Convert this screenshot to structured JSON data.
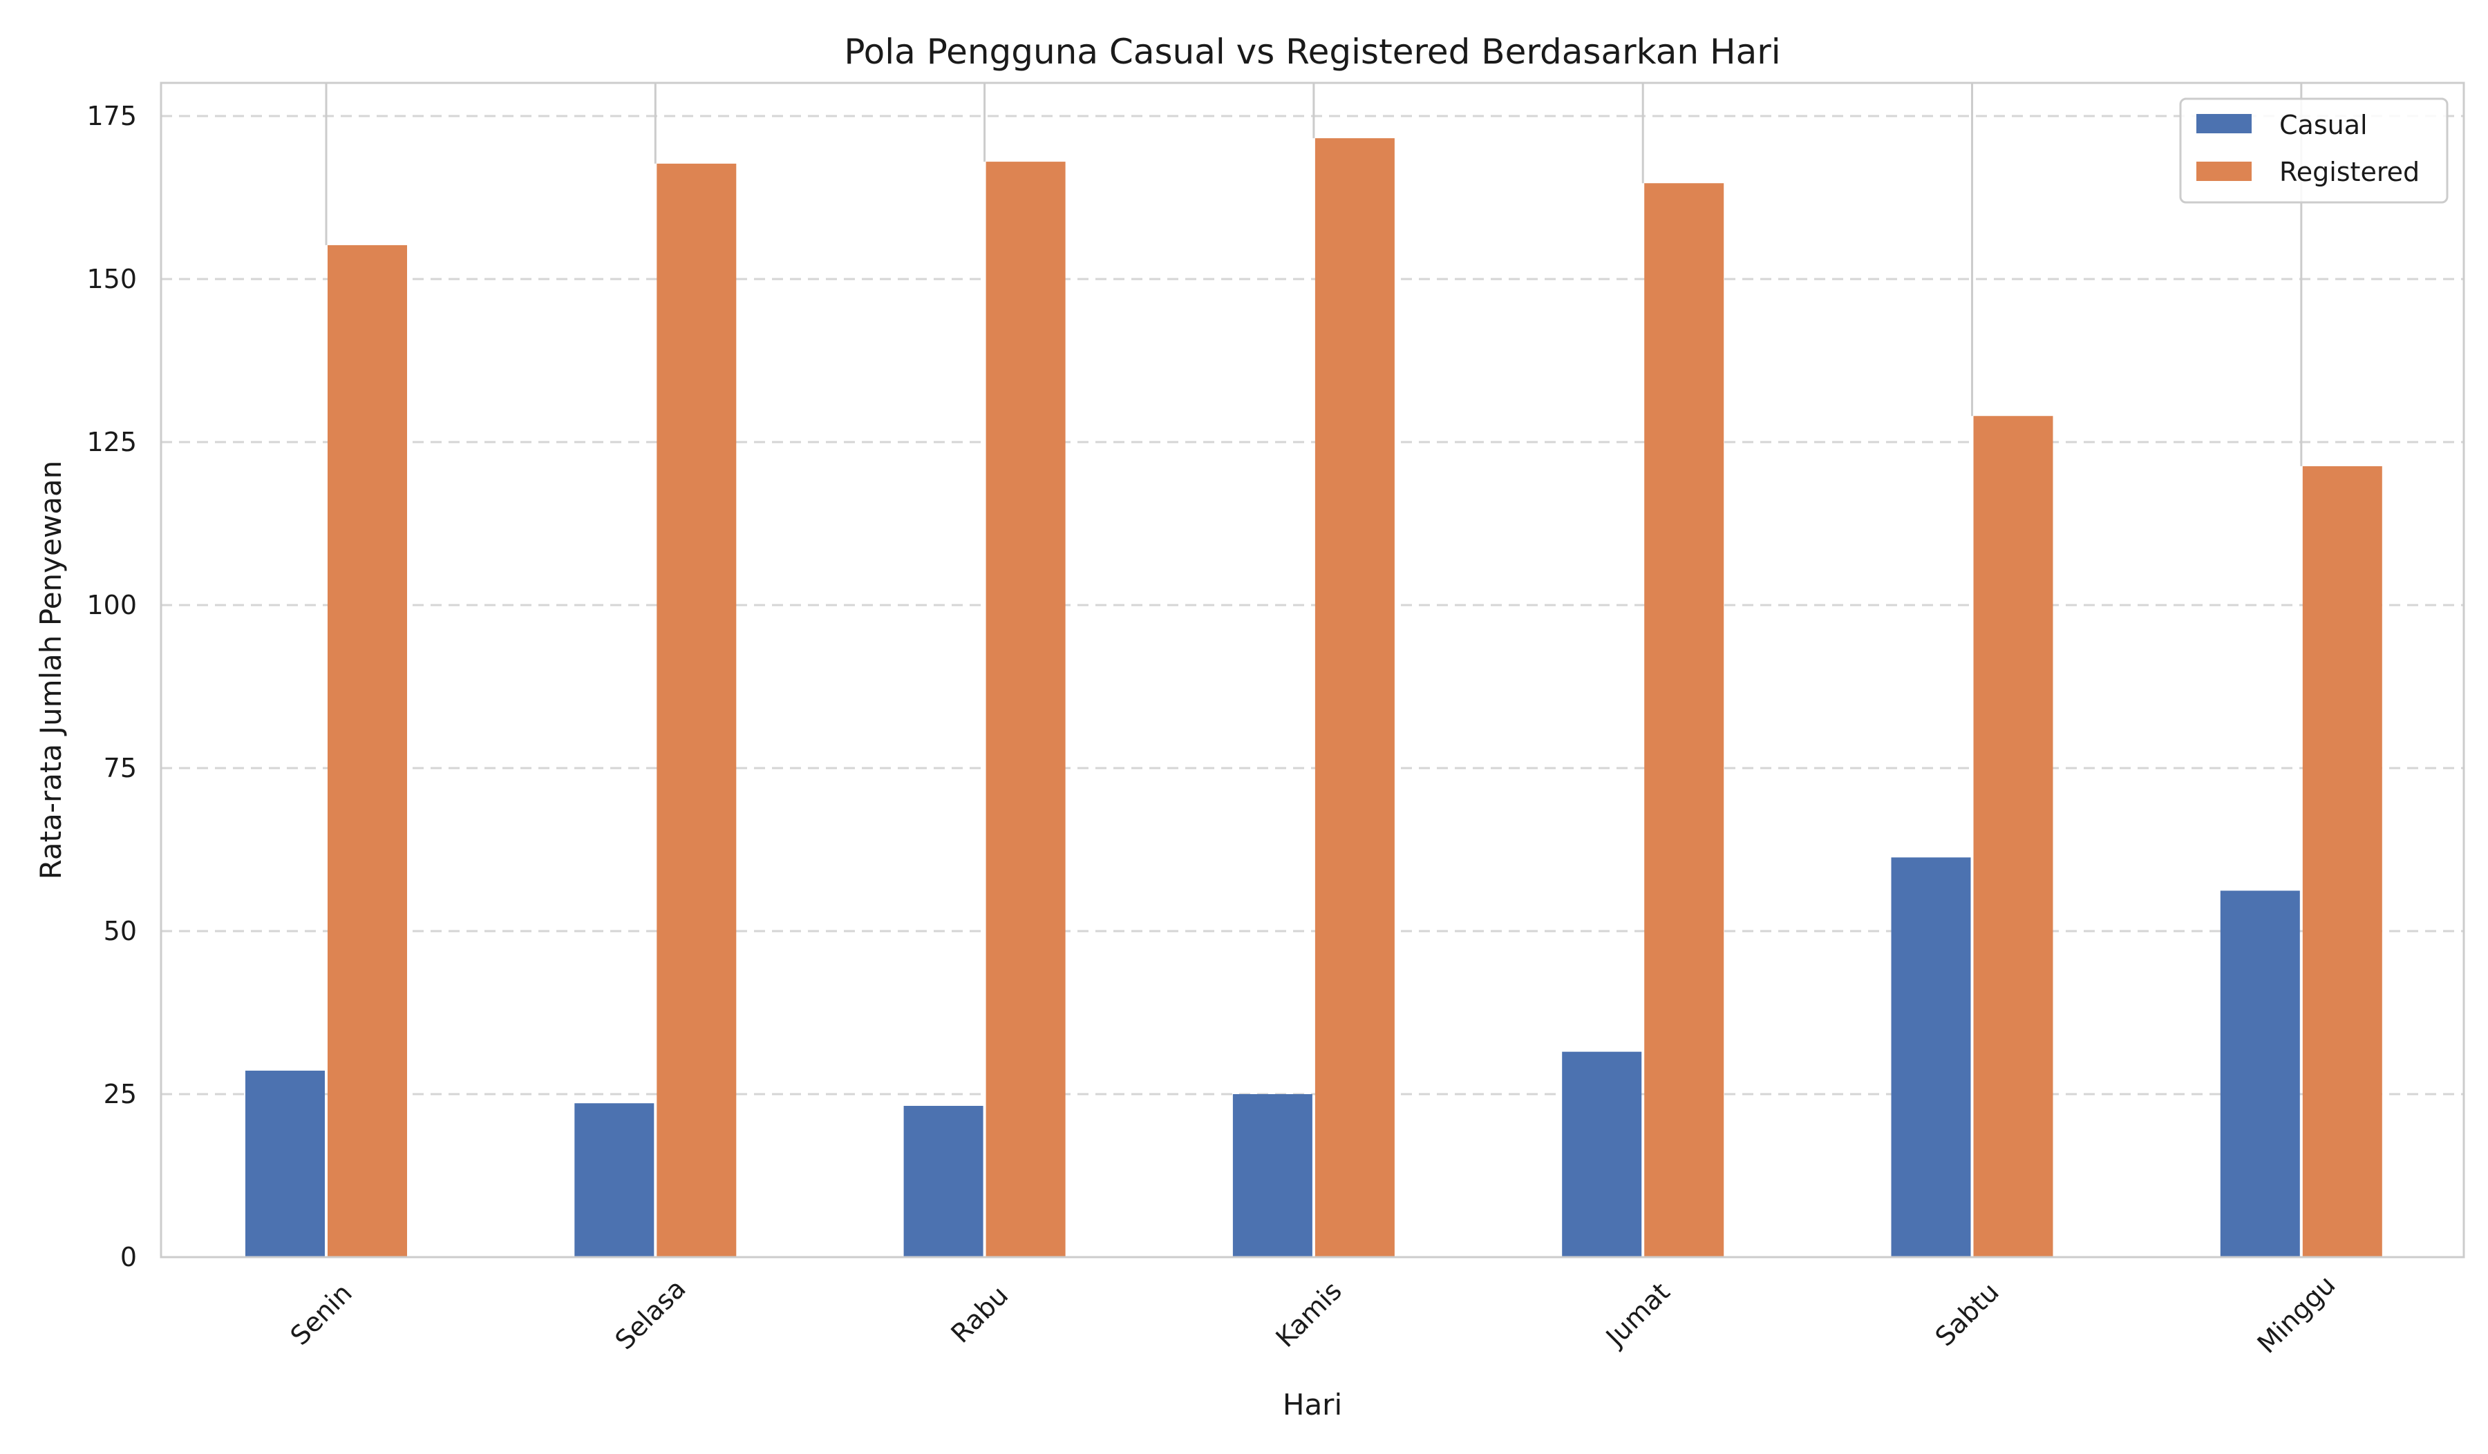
{
  "chart_data": {
    "type": "bar",
    "title": "Pola Pengguna Casual vs Registered Berdasarkan Hari",
    "xlabel": "Hari",
    "ylabel": "Rata-rata Jumlah Penyewaan",
    "categories": [
      "Senin",
      "Selasa",
      "Rabu",
      "Kamis",
      "Jumat",
      "Sabtu",
      "Minggu"
    ],
    "series": [
      {
        "name": "Casual",
        "color": "#4c72b0",
        "values": [
          28.6,
          23.6,
          23.2,
          25.0,
          31.5,
          61.3,
          56.2
        ]
      },
      {
        "name": "Registered",
        "color": "#dd8452",
        "values": [
          155.2,
          167.7,
          168.0,
          171.6,
          164.7,
          129.0,
          121.3
        ]
      }
    ],
    "ylim": [
      0,
      180
    ],
    "yticks": [
      0,
      25,
      50,
      75,
      100,
      125,
      150,
      175
    ],
    "grid": "y-dashed",
    "legend_position": "top-right",
    "colors": {
      "grid": "#d5d5d5",
      "spine": "#cccccc",
      "divider": "#cccccc"
    }
  }
}
